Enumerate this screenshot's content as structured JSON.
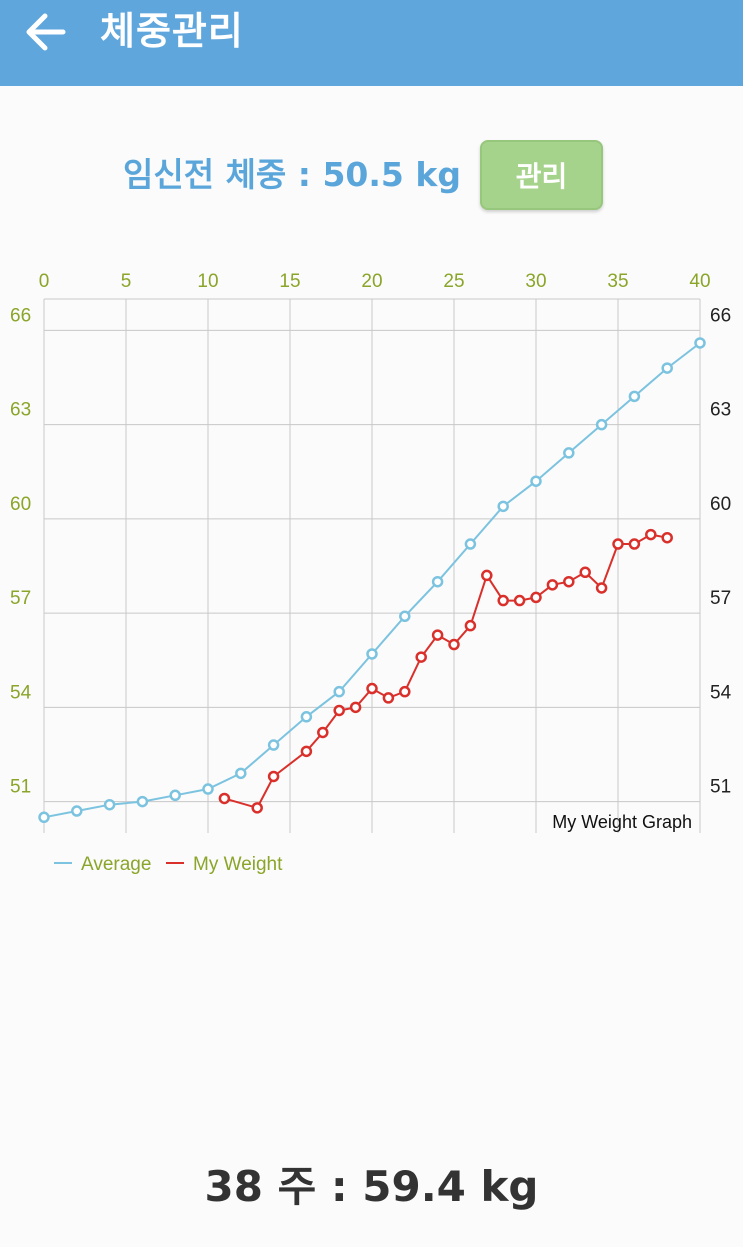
{
  "appbar": {
    "title": "체중관리",
    "back_icon": "arrow-left-icon",
    "bg_color": "#5fa6dc"
  },
  "pre_pregnancy": {
    "text": "임신전 체중 : 50.5 kg",
    "button_label": "관리"
  },
  "chart_data": {
    "type": "line",
    "title": "My Weight Graph",
    "xlabel": "",
    "ylabel": "",
    "xlim": [
      0,
      40
    ],
    "ylim": [
      50,
      67
    ],
    "x_ticks": [
      "0",
      "5",
      "10",
      "15",
      "20",
      "25",
      "30",
      "35",
      "40"
    ],
    "y_ticks": [
      "51",
      "54",
      "57",
      "60",
      "63",
      "66"
    ],
    "grid": true,
    "legend_position": "bottom-left",
    "series": [
      {
        "name": "Average",
        "color": "#7cc3e0",
        "x": [
          0,
          2,
          4,
          6,
          8,
          10,
          12,
          14,
          16,
          18,
          20,
          22,
          24,
          26,
          28,
          30,
          32,
          34,
          36,
          38,
          40
        ],
        "values": [
          50.5,
          50.7,
          50.9,
          51.0,
          51.2,
          51.4,
          51.9,
          52.8,
          53.7,
          54.5,
          55.7,
          56.9,
          58.0,
          59.2,
          60.4,
          61.2,
          62.1,
          63.0,
          63.9,
          64.8,
          65.6
        ]
      },
      {
        "name": "My Weight",
        "color": "#d9302b",
        "x": [
          11,
          13,
          14,
          16,
          17,
          18,
          19,
          20,
          21,
          22,
          23,
          24,
          25,
          26,
          27,
          28,
          29,
          30,
          31,
          32,
          33,
          34,
          35,
          36,
          37,
          38
        ],
        "values": [
          51.1,
          50.8,
          51.8,
          52.6,
          53.2,
          53.9,
          54.0,
          54.6,
          54.3,
          54.5,
          55.6,
          56.3,
          56.0,
          56.6,
          58.2,
          57.4,
          57.4,
          57.5,
          57.9,
          58.0,
          58.3,
          57.8,
          59.2,
          59.2,
          59.5,
          59.4
        ]
      }
    ]
  },
  "current": {
    "text": "38 주 : 59.4 kg"
  }
}
